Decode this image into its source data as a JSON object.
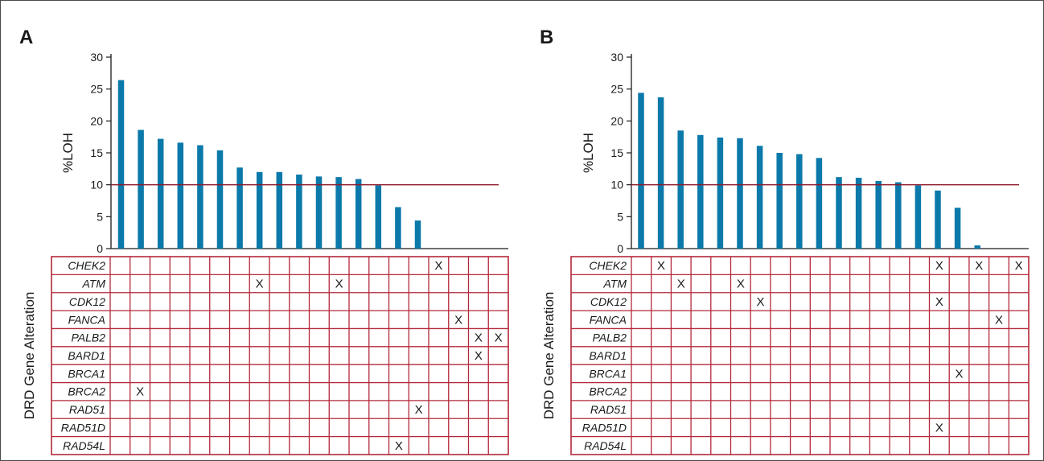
{
  "figure": {
    "colors": {
      "bar": "#0b79aa",
      "threshold": "#8e1b2c",
      "grid": "#b3283b",
      "axis": "#1a1a1a"
    }
  },
  "chart_data": [
    {
      "type": "bar",
      "panel": "A",
      "ylabel": "%LOH",
      "ylim": [
        0,
        30
      ],
      "yticks": [
        0,
        5,
        10,
        15,
        20,
        25,
        30
      ],
      "threshold": 10,
      "values": [
        26.4,
        18.6,
        17.2,
        16.6,
        16.2,
        15.4,
        12.7,
        12.0,
        12.0,
        11.6,
        11.3,
        11.2,
        10.9,
        9.9,
        6.5,
        4.4,
        0,
        0,
        0,
        0
      ],
      "alteration_label": "DRD Gene Alteration",
      "genes": [
        "CHEK2",
        "ATM",
        "CDK12",
        "FANCA",
        "PALB2",
        "BARD1",
        "BRCA1",
        "BRCA2",
        "RAD51",
        "RAD51D",
        "RAD54L"
      ],
      "alterations": [
        {
          "gene": "CHEK2",
          "sample": 17,
          "mark": "X"
        },
        {
          "gene": "ATM",
          "sample": 8,
          "mark": "X"
        },
        {
          "gene": "ATM",
          "sample": 12,
          "mark": "X"
        },
        {
          "gene": "FANCA",
          "sample": 18,
          "mark": "X"
        },
        {
          "gene": "PALB2",
          "sample": 19,
          "mark": "X"
        },
        {
          "gene": "PALB2",
          "sample": 20,
          "mark": "X"
        },
        {
          "gene": "BARD1",
          "sample": 19,
          "mark": "X"
        },
        {
          "gene": "BRCA2",
          "sample": 2,
          "mark": "X"
        },
        {
          "gene": "RAD51",
          "sample": 16,
          "mark": "X"
        },
        {
          "gene": "RAD54L",
          "sample": 15,
          "mark": "X"
        }
      ]
    },
    {
      "type": "bar",
      "panel": "B",
      "ylabel": "%LOH",
      "ylim": [
        0,
        30
      ],
      "yticks": [
        0,
        5,
        10,
        15,
        20,
        25,
        30
      ],
      "threshold": 10,
      "values": [
        24.4,
        23.7,
        18.5,
        17.8,
        17.4,
        17.3,
        16.1,
        15.0,
        14.8,
        14.2,
        11.2,
        11.1,
        10.6,
        10.4,
        9.9,
        9.1,
        6.4,
        0.5,
        0,
        0
      ],
      "alteration_label": "DRD Gene Alteration",
      "genes": [
        "CHEK2",
        "ATM",
        "CDK12",
        "FANCA",
        "PALB2",
        "BARD1",
        "BRCA1",
        "BRCA2",
        "RAD51",
        "RAD51D",
        "RAD54L"
      ],
      "alterations": [
        {
          "gene": "CHEK2",
          "sample": 2,
          "mark": "X"
        },
        {
          "gene": "CHEK2",
          "sample": 16,
          "mark": "X"
        },
        {
          "gene": "CHEK2",
          "sample": 18,
          "mark": "X"
        },
        {
          "gene": "CHEK2",
          "sample": 20,
          "mark": "X"
        },
        {
          "gene": "ATM",
          "sample": 3,
          "mark": "X"
        },
        {
          "gene": "ATM",
          "sample": 6,
          "mark": "X"
        },
        {
          "gene": "CDK12",
          "sample": 7,
          "mark": "X"
        },
        {
          "gene": "CDK12",
          "sample": 16,
          "mark": "X"
        },
        {
          "gene": "FANCA",
          "sample": 19,
          "mark": "X"
        },
        {
          "gene": "BRCA1",
          "sample": 17,
          "mark": "X"
        },
        {
          "gene": "RAD51D",
          "sample": 16,
          "mark": "X"
        }
      ]
    }
  ]
}
